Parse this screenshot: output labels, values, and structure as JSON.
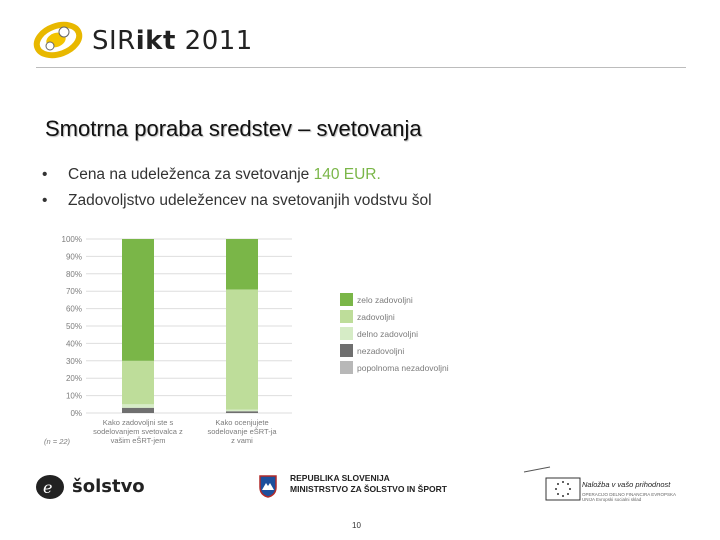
{
  "header": {
    "logo_text_main": "SIR",
    "logo_text_bold": "ikt",
    "logo_text_year": " 2011"
  },
  "slide": {
    "title": "Smotrna poraba sredstev – svetovanja",
    "bullets": [
      {
        "text": "Cena na udeleženca za svetovanje ",
        "highlight": "140 EUR."
      },
      {
        "text": "Zadovoljstvo udeležencev na svetovanjih vodstvu šol",
        "highlight": ""
      }
    ]
  },
  "chart_data": {
    "type": "bar",
    "stacked": true,
    "ylim": [
      0,
      100
    ],
    "yticks": [
      "100%",
      "90%",
      "80%",
      "70%",
      "60%",
      "50%",
      "40%",
      "30%",
      "20%",
      "10%",
      "0%"
    ],
    "categories": [
      [
        "Kako zadovoljni ste s",
        "sodelovanjem svetovalca z",
        "vašim eŠRT-jem"
      ],
      [
        "Kako ocenjujete",
        "sodelovanje eŠRT-ja",
        "z vami"
      ]
    ],
    "note": "(n = 22)",
    "series": [
      {
        "name": "popolnoma nezadovoljni",
        "color": "#b8b8b8",
        "values": [
          0,
          0
        ]
      },
      {
        "name": "nezadovoljni",
        "color": "#6f6f6f",
        "values": [
          3,
          1
        ]
      },
      {
        "name": "delno zadovoljni",
        "color": "#d6ecc6",
        "values": [
          2,
          1
        ]
      },
      {
        "name": "zadovoljni",
        "color": "#bedd9a",
        "values": [
          25,
          69
        ]
      },
      {
        "name": "zelo zadovoljni",
        "color": "#7ab648",
        "values": [
          70,
          29
        ]
      }
    ],
    "legend_position": "right",
    "grid": true
  },
  "footer": {
    "esolstvo": "šolstvo",
    "ministry_line1": "REPUBLIKA SLOVENIJA",
    "ministry_line2": "MINISTRSTVO ZA ŠOLSTVO IN ŠPORT",
    "eu_slogan": "Naložba v vašo prihodnost",
    "eu_small": "OPERACIJO DELNO FINANCIRA EVROPSKA UNIJA Evropski socialni sklad",
    "page_number": "10"
  }
}
